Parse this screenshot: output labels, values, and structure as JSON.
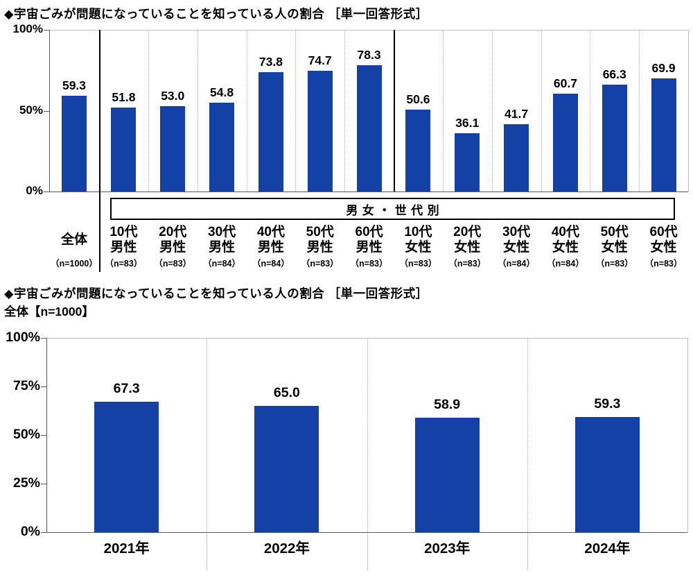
{
  "colors": {
    "bar": "#1441A5",
    "axis": "#595959",
    "frame": "#bfbfbf",
    "grid_dotted": "#b0b0b0",
    "separator": "#000000",
    "label_divider": "#c9c9c9",
    "text": "#000000"
  },
  "chart_data": [
    {
      "type": "bar",
      "title": "◆宇宙ごみが問題になっていることを知っている人の割合 ［単一回答形式］",
      "ylim": [
        0,
        100
      ],
      "grid": "vertical-dotted-between-categories",
      "legend_position": "none",
      "yticks": [
        {
          "value": 100,
          "label": "100%"
        },
        {
          "value": 50,
          "label": "50%"
        },
        {
          "value": 0,
          "label": "0%"
        }
      ],
      "group_box_label": "男女・世代別",
      "categories": [
        {
          "lines": [
            "全体"
          ],
          "n": "（n=1000）",
          "value": "59.3"
        },
        {
          "lines": [
            "10代",
            "男性"
          ],
          "n": "（n=83）",
          "value": "51.8"
        },
        {
          "lines": [
            "20代",
            "男性"
          ],
          "n": "（n=83）",
          "value": "53.0"
        },
        {
          "lines": [
            "30代",
            "男性"
          ],
          "n": "（n=84）",
          "value": "54.8"
        },
        {
          "lines": [
            "40代",
            "男性"
          ],
          "n": "（n=84）",
          "value": "73.8"
        },
        {
          "lines": [
            "50代",
            "男性"
          ],
          "n": "（n=83）",
          "value": "74.7"
        },
        {
          "lines": [
            "60代",
            "男性"
          ],
          "n": "（n=83）",
          "value": "78.3"
        },
        {
          "lines": [
            "10代",
            "女性"
          ],
          "n": "（n=83）",
          "value": "50.6"
        },
        {
          "lines": [
            "20代",
            "女性"
          ],
          "n": "（n=83）",
          "value": "36.1"
        },
        {
          "lines": [
            "30代",
            "女性"
          ],
          "n": "（n=84）",
          "value": "41.7"
        },
        {
          "lines": [
            "40代",
            "女性"
          ],
          "n": "（n=84）",
          "value": "60.7"
        },
        {
          "lines": [
            "50代",
            "女性"
          ],
          "n": "（n=83）",
          "value": "66.3"
        },
        {
          "lines": [
            "60代",
            "女性"
          ],
          "n": "（n=83）",
          "value": "69.9"
        }
      ]
    },
    {
      "type": "bar",
      "title": "◆宇宙ごみが問題になっていることを知っている人の割合 ［単一回答形式］",
      "subtitle": "全体【n=1000】",
      "ylim": [
        0,
        100
      ],
      "grid": "vertical-dotted-between-categories",
      "legend_position": "none",
      "yticks": [
        {
          "value": 100,
          "label": "100%"
        },
        {
          "value": 75,
          "label": "75%"
        },
        {
          "value": 50,
          "label": "50%"
        },
        {
          "value": 25,
          "label": "25%"
        },
        {
          "value": 0,
          "label": "0%"
        }
      ],
      "categories": [
        {
          "label": "2021年",
          "value": "67.3"
        },
        {
          "label": "2022年",
          "value": "65.0"
        },
        {
          "label": "2023年",
          "value": "58.9"
        },
        {
          "label": "2024年",
          "value": "59.3"
        }
      ]
    }
  ]
}
